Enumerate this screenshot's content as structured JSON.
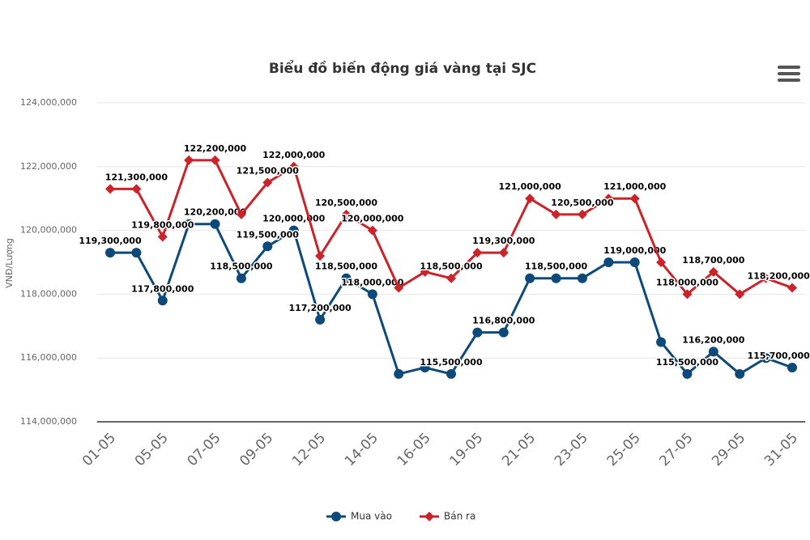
{
  "chart_data": {
    "type": "line",
    "title": "Biểu đồ biến động giá vàng tại SJC",
    "y_label": "VNĐ/Lượng",
    "categories": [
      "01-05",
      null,
      "05-05",
      null,
      "07-05",
      null,
      "09-05",
      null,
      "12-05",
      null,
      "14-05",
      null,
      "16-05",
      null,
      "19-05",
      null,
      "21-05",
      null,
      "23-05",
      null,
      "25-05",
      null,
      "27-05",
      null,
      "29-05",
      null,
      "31-05"
    ],
    "series": [
      {
        "name": "Mua vào",
        "color": "#0d4a79",
        "marker": "circle",
        "values": [
          119300000,
          119300000,
          117800000,
          120200000,
          120200000,
          118500000,
          119500000,
          120000000,
          117200000,
          118500000,
          118000000,
          115500000,
          115700000,
          115500000,
          116800000,
          116800000,
          118500000,
          118500000,
          118500000,
          119000000,
          119000000,
          116500000,
          115500000,
          116200000,
          115500000,
          116000000,
          115700000
        ],
        "value_labels": [
          "119,300,000",
          null,
          "117,800,000",
          null,
          "120,200,000",
          "118,500,000",
          "119,500,000",
          "120,000,000",
          "117,200,000",
          "118,500,000",
          "118,000,000",
          null,
          null,
          "115,500,000",
          null,
          "116,800,000",
          null,
          "118,500,000",
          null,
          null,
          "119,000,000",
          null,
          "115,500,000",
          "116,200,000",
          null,
          null,
          "115,700,000"
        ]
      },
      {
        "name": "Bán ra",
        "color": "#cc2229",
        "marker": "diamond",
        "values": [
          121300000,
          121300000,
          119800000,
          122200000,
          122200000,
          120500000,
          121500000,
          122000000,
          119200000,
          120500000,
          120000000,
          118200000,
          118700000,
          118500000,
          119300000,
          119300000,
          121000000,
          120500000,
          120500000,
          121000000,
          121000000,
          119000000,
          118000000,
          118700000,
          118000000,
          118500000,
          118200000
        ],
        "value_labels": [
          null,
          "121,300,000",
          "119,800,000",
          null,
          "122,200,000",
          null,
          "121,500,000",
          "122,000,000",
          null,
          "120,500,000",
          "120,000,000",
          null,
          null,
          "118,500,000",
          null,
          "119,300,000",
          "121,000,000",
          null,
          "120,500,000",
          null,
          "121,000,000",
          null,
          "118,000,000",
          "118,700,000",
          null,
          null,
          "118,200,000"
        ]
      }
    ],
    "ylim": [
      114000000,
      124000000
    ],
    "yticks": [
      {
        "value": 114000000,
        "label": "114,000,000"
      },
      {
        "value": 116000000,
        "label": "116,000,000"
      },
      {
        "value": 118000000,
        "label": "118,000,000"
      },
      {
        "value": 120000000,
        "label": "120,000,000"
      },
      {
        "value": 122000000,
        "label": "122,000,000"
      },
      {
        "value": 124000000,
        "label": "124,000,000"
      }
    ],
    "grid": true,
    "legend": "bottom"
  }
}
